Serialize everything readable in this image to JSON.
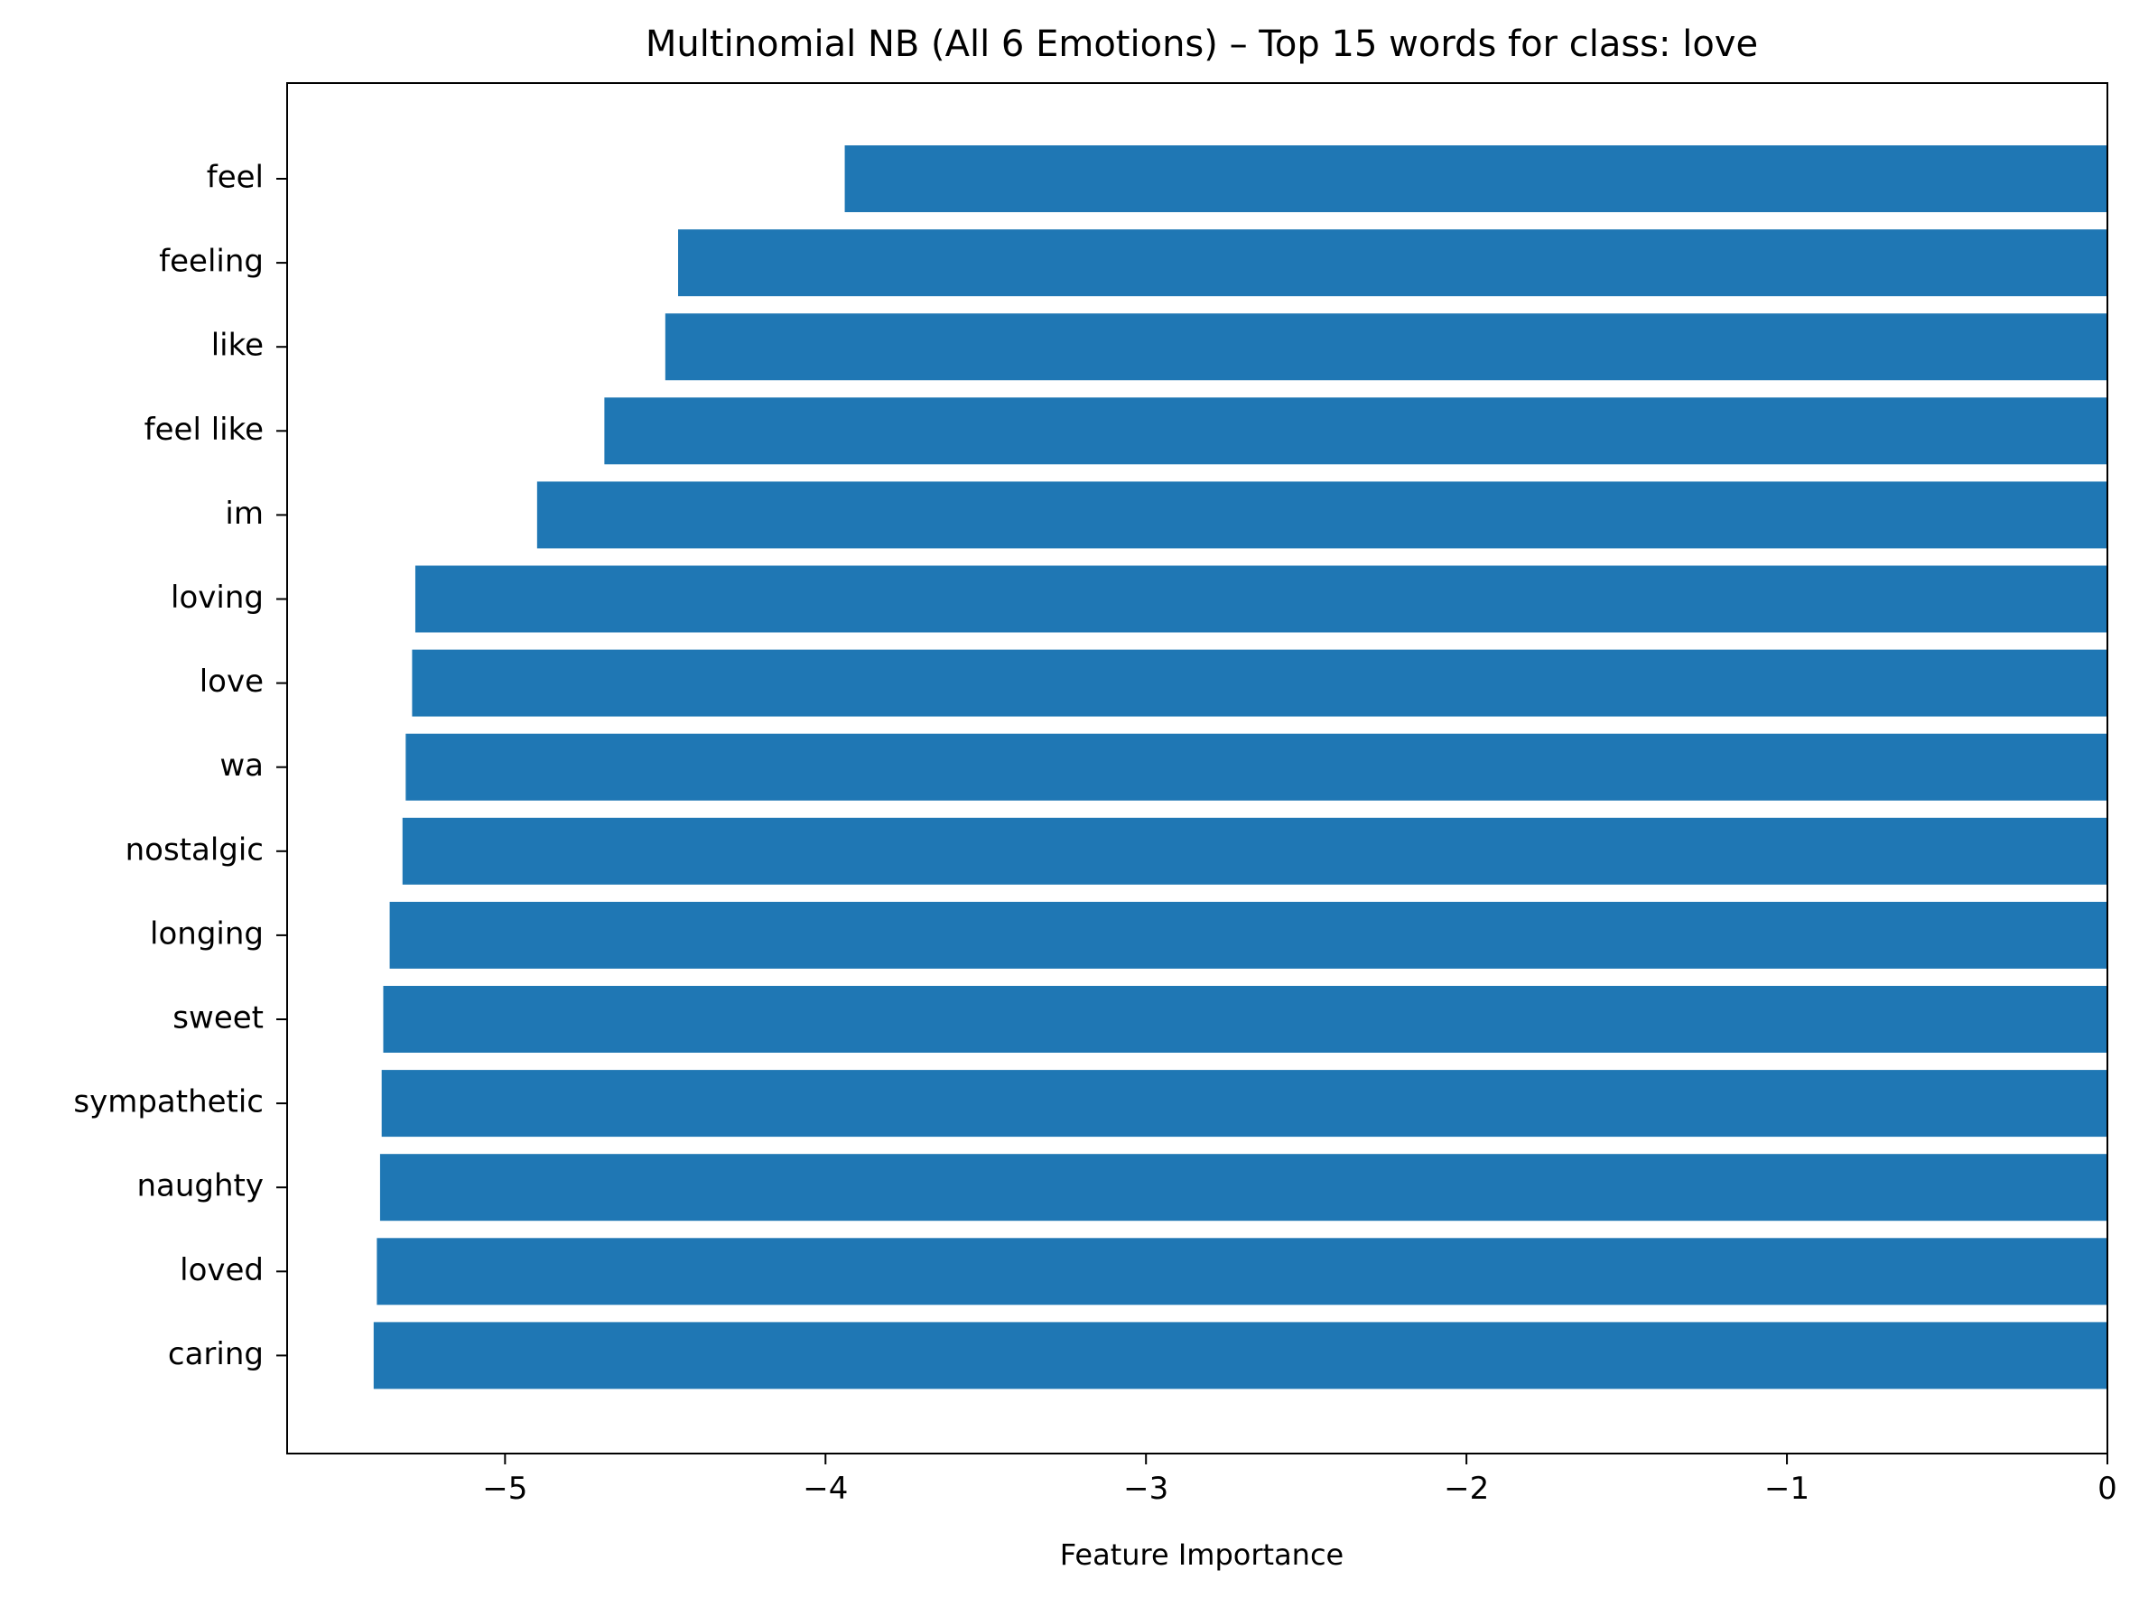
{
  "chart_data": {
    "type": "bar",
    "orientation": "horizontal",
    "title": "Multinomial NB (All 6 Emotions) – Top 15 words for class: love",
    "xlabel": "Feature Importance",
    "ylabel": "",
    "xlim": [
      -5.68,
      0
    ],
    "x_ticks": [
      -5,
      -4,
      -3,
      -2,
      -1,
      0
    ],
    "x_tick_labels": [
      "−5",
      "−4",
      "−3",
      "−2",
      "−1",
      "0"
    ],
    "grid": false,
    "bar_color": "#1f77b4",
    "categories": [
      "feel",
      "feeling",
      "like",
      "feel like",
      "im",
      "loving",
      "love",
      "wa",
      "nostalgic",
      "longing",
      "sweet",
      "sympathetic",
      "naughty",
      "loved",
      "caring"
    ],
    "values": [
      -3.94,
      -4.46,
      -4.5,
      -4.69,
      -4.9,
      -5.28,
      -5.29,
      -5.31,
      -5.32,
      -5.36,
      -5.38,
      -5.385,
      -5.39,
      -5.4,
      -5.41
    ]
  }
}
